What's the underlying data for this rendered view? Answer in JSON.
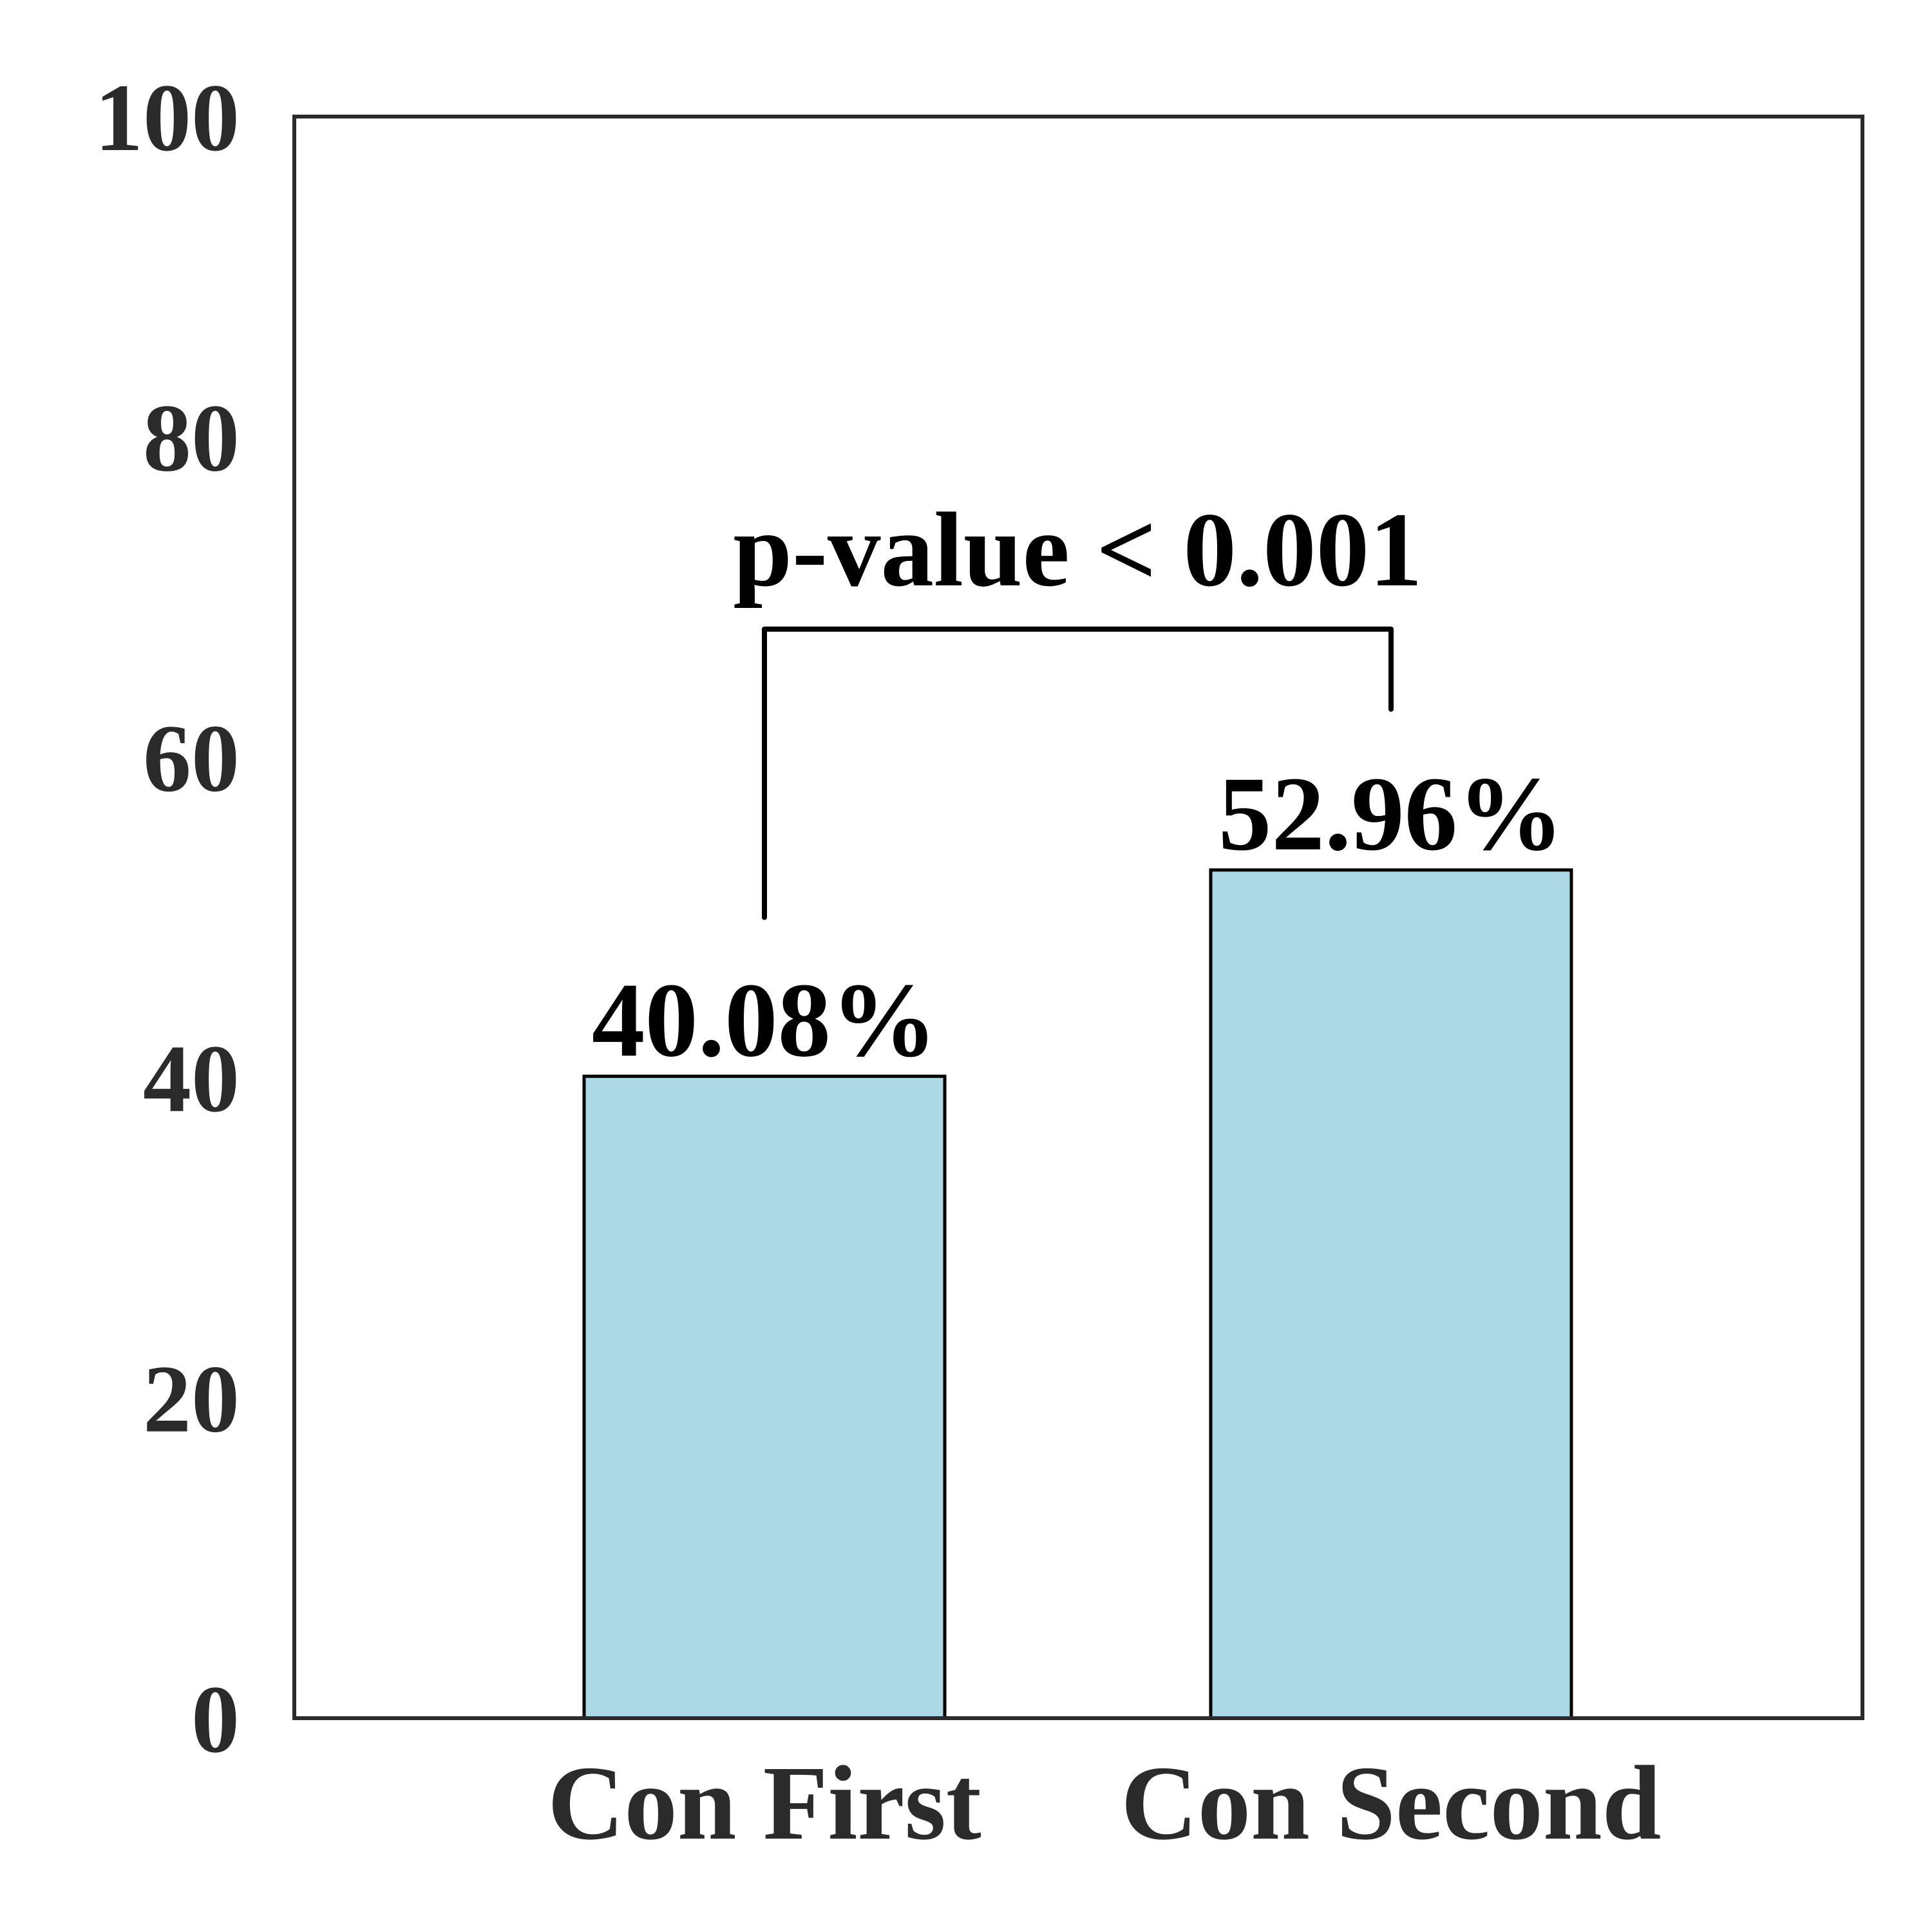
{
  "chart_data": {
    "type": "bar",
    "categories": [
      "Con First",
      "Con Second"
    ],
    "values": [
      40.08,
      52.96
    ],
    "data_labels": [
      "40.08%",
      "52.96%"
    ],
    "title": "",
    "xlabel": "",
    "ylabel": "",
    "ylim": [
      0,
      100
    ],
    "yticks": [
      "0",
      "20",
      "40",
      "60",
      "80",
      "100"
    ],
    "grid": false,
    "bar_color": "#add8e6",
    "bar_edge_color": "#000000",
    "frame_color": "#2b2b2b",
    "annotation": {
      "text": "p-value < 0.001",
      "from_category": "Con First",
      "to_category": "Con Second",
      "bracket_level": 68,
      "left_leg_bottom": 50,
      "right_leg_bottom": 63
    }
  }
}
